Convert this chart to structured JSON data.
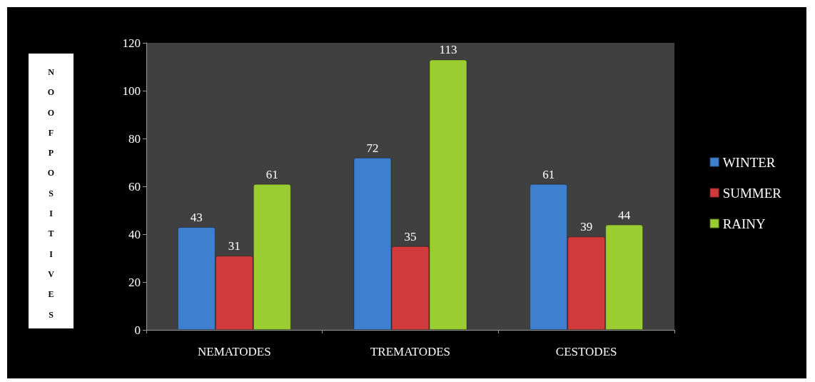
{
  "chart_data": {
    "type": "bar",
    "ylabel": "NOOFPOSITIVES",
    "categories": [
      "NEMATODES",
      "TREMATODES",
      "CESTODES"
    ],
    "series": [
      {
        "name": "WINTER",
        "color": "#3f7fd0",
        "values": [
          43,
          72,
          61
        ]
      },
      {
        "name": "SUMMER",
        "color": "#d03a3a",
        "values": [
          31,
          35,
          39
        ]
      },
      {
        "name": "RAINY",
        "color": "#9acd32",
        "values": [
          61,
          113,
          44
        ]
      }
    ],
    "ylim": [
      0,
      120
    ],
    "yticks": [
      0,
      20,
      40,
      60,
      80,
      100,
      120
    ],
    "grid": false,
    "legend": "right",
    "data_labels": true
  }
}
